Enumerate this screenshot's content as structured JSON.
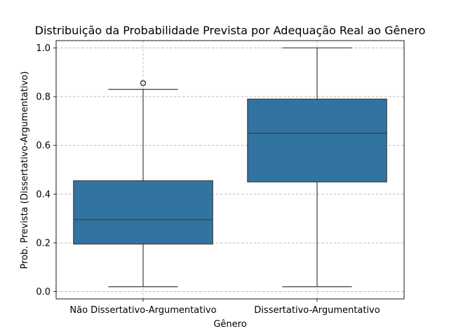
{
  "chart_data": {
    "type": "box",
    "title": "Distribuição da Probabilidade Prevista por Adequação Real ao Gênero",
    "xlabel": "Gênero",
    "ylabel": "Prob. Prevista (Dissertativo-Argumentativo)",
    "ylim": [
      -0.03,
      1.03
    ],
    "yticks": [
      {
        "value": 0.0,
        "label": "0.0"
      },
      {
        "value": 0.2,
        "label": "0.2"
      },
      {
        "value": 0.4,
        "label": "0.4"
      },
      {
        "value": 0.6,
        "label": "0.6"
      },
      {
        "value": 0.8,
        "label": "0.8"
      },
      {
        "value": 1.0,
        "label": "1.0"
      }
    ],
    "grid": true,
    "box_color": "#3274a1",
    "categories": [
      "Não Dissertativo-Argumentativo",
      "Dissertativo-Argumentativo"
    ],
    "boxes": [
      {
        "category": "Não Dissertativo-Argumentativo",
        "whisker_low": 0.02,
        "q1": 0.195,
        "median": 0.295,
        "q3": 0.455,
        "whisker_high": 0.83,
        "outliers": [
          0.855
        ]
      },
      {
        "category": "Dissertativo-Argumentativo",
        "whisker_low": 0.02,
        "q1": 0.45,
        "median": 0.65,
        "q3": 0.79,
        "whisker_high": 1.0,
        "outliers": []
      }
    ]
  }
}
